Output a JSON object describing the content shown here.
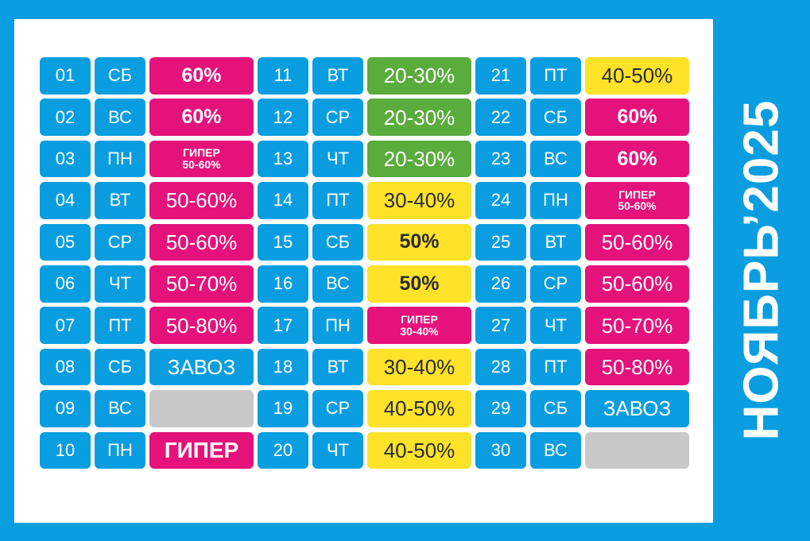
{
  "title": "НОЯБРЬ’2025",
  "columns": [
    [
      {
        "num": "01",
        "day": "СБ",
        "value": "60%",
        "color": "pink",
        "style": "bold"
      },
      {
        "num": "02",
        "day": "ВС",
        "value": "60%",
        "color": "pink",
        "style": "bold"
      },
      {
        "num": "03",
        "day": "ПН",
        "value": "ГИПЕР\n50-60%",
        "color": "pink",
        "style": "two"
      },
      {
        "num": "04",
        "day": "ВТ",
        "value": "50-60%",
        "color": "pink",
        "style": "large"
      },
      {
        "num": "05",
        "day": "СР",
        "value": "50-60%",
        "color": "pink",
        "style": "large"
      },
      {
        "num": "06",
        "day": "ЧТ",
        "value": "50-70%",
        "color": "pink",
        "style": "large"
      },
      {
        "num": "07",
        "day": "ПТ",
        "value": "50-80%",
        "color": "pink",
        "style": "large"
      },
      {
        "num": "08",
        "day": "СБ",
        "value": "ЗАВОЗ",
        "color": "blue",
        "style": "large"
      },
      {
        "num": "09",
        "day": "ВС",
        "value": "",
        "color": "gray",
        "style": "large"
      },
      {
        "num": "10",
        "day": "ПН",
        "value": "ГИПЕР",
        "color": "pink",
        "style": "super"
      }
    ],
    [
      {
        "num": "11",
        "day": "ВТ",
        "value": "20-30%",
        "color": "green",
        "style": "large"
      },
      {
        "num": "12",
        "day": "СР",
        "value": "20-30%",
        "color": "green",
        "style": "large"
      },
      {
        "num": "13",
        "day": "ЧТ",
        "value": "20-30%",
        "color": "green",
        "style": "large"
      },
      {
        "num": "14",
        "day": "ПТ",
        "value": "30-40%",
        "color": "yellow",
        "style": "large"
      },
      {
        "num": "15",
        "day": "СБ",
        "value": "50%",
        "color": "yellow",
        "style": "bold"
      },
      {
        "num": "16",
        "day": "ВС",
        "value": "50%",
        "color": "yellow",
        "style": "bold"
      },
      {
        "num": "17",
        "day": "ПН",
        "value": "ГИПЕР\n30-40%",
        "color": "pink",
        "style": "two"
      },
      {
        "num": "18",
        "day": "ВТ",
        "value": "30-40%",
        "color": "yellow",
        "style": "large"
      },
      {
        "num": "19",
        "day": "СР",
        "value": "40-50%",
        "color": "yellow",
        "style": "large"
      },
      {
        "num": "20",
        "day": "ЧТ",
        "value": "40-50%",
        "color": "yellow",
        "style": "large"
      }
    ],
    [
      {
        "num": "21",
        "day": "ПТ",
        "value": "40-50%",
        "color": "yellow",
        "style": "large"
      },
      {
        "num": "22",
        "day": "СБ",
        "value": "60%",
        "color": "pink",
        "style": "bold"
      },
      {
        "num": "23",
        "day": "ВС",
        "value": "60%",
        "color": "pink",
        "style": "bold"
      },
      {
        "num": "24",
        "day": "ПН",
        "value": "ГИПЕР\n50-60%",
        "color": "pink",
        "style": "two"
      },
      {
        "num": "25",
        "day": "ВТ",
        "value": "50-60%",
        "color": "pink",
        "style": "large"
      },
      {
        "num": "26",
        "day": "СР",
        "value": "50-60%",
        "color": "pink",
        "style": "large"
      },
      {
        "num": "27",
        "day": "ЧТ",
        "value": "50-70%",
        "color": "pink",
        "style": "large"
      },
      {
        "num": "28",
        "day": "ПТ",
        "value": "50-80%",
        "color": "pink",
        "style": "large"
      },
      {
        "num": "29",
        "day": "СБ",
        "value": "ЗАВОЗ",
        "color": "blue",
        "style": "large"
      },
      {
        "num": "30",
        "day": "ВС",
        "value": "",
        "color": "gray",
        "style": "large"
      }
    ]
  ]
}
